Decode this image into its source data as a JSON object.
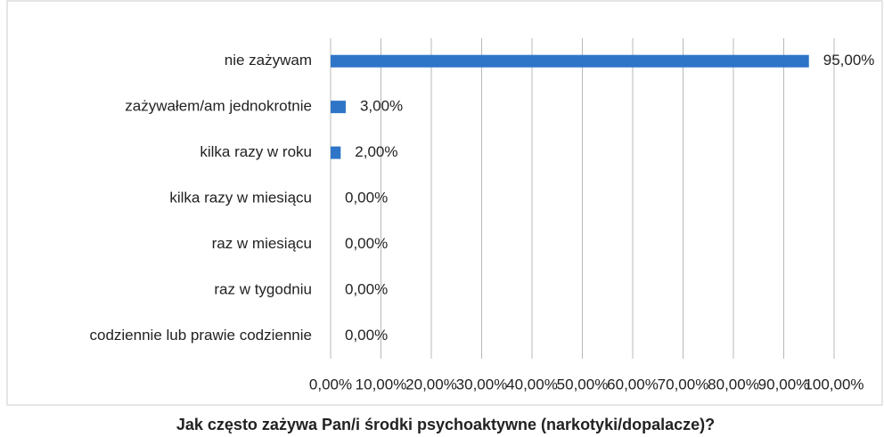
{
  "chart_data": {
    "type": "bar",
    "orientation": "horizontal",
    "title": "Jak często zażywa Pan/i środki psychoaktywne (narkotyki/dopalacze)?",
    "categories": [
      "nie zażywam",
      "zażywałem/am  jednokrotnie",
      "kilka razy w roku",
      "kilka razy w miesiącu",
      "raz w miesiącu",
      "raz w tygodniu",
      "codziennie lub prawie codziennie"
    ],
    "values": [
      95,
      3,
      2,
      0,
      0,
      0,
      0
    ],
    "value_labels": [
      "95,00%",
      "3,00%",
      "2,00%",
      "0,00%",
      "0,00%",
      "0,00%",
      "0,00%"
    ],
    "color": "#2e75c8",
    "xlim": [
      0,
      100
    ],
    "xticks": [
      {
        "value": 0,
        "label": "0,00%"
      },
      {
        "value": 10,
        "label": "10,00%"
      },
      {
        "value": 20,
        "label": "20,00%"
      },
      {
        "value": 30,
        "label": "30,00%"
      },
      {
        "value": 40,
        "label": "40,00%"
      },
      {
        "value": 50,
        "label": "50,00%"
      },
      {
        "value": 60,
        "label": "60,00%"
      },
      {
        "value": 70,
        "label": "70,00%"
      },
      {
        "value": 80,
        "label": "80,00%"
      },
      {
        "value": 90,
        "label": "90,00%"
      },
      {
        "value": 100,
        "label": "100,00%"
      }
    ],
    "grid": true
  }
}
